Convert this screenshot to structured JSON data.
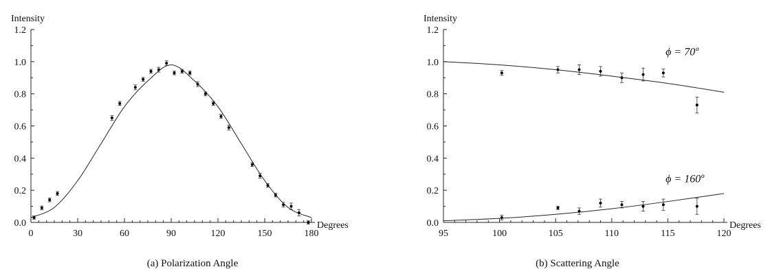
{
  "chart_data": [
    {
      "type": "scatter",
      "caption": "(a) Polarization Angle",
      "ylabel": "Intensity",
      "xlabel": "Degrees",
      "xlim": [
        0,
        180
      ],
      "ylim": [
        0,
        1.2
      ],
      "x_ticks": [
        "0",
        "30",
        "60",
        "90",
        "120",
        "150",
        "180"
      ],
      "y_ticks": [
        "0.0",
        "0.2",
        "0.4",
        "0.6",
        "0.8",
        "1.0",
        "1.2"
      ],
      "grid": false,
      "series": [
        {
          "kind": "points",
          "x": [
            2,
            7,
            12,
            17,
            52,
            57,
            67,
            72,
            77,
            82,
            87,
            92,
            97,
            102,
            107,
            112,
            117,
            122,
            127,
            142,
            147,
            152,
            157,
            162,
            167,
            172,
            178
          ],
          "y": [
            0.03,
            0.09,
            0.14,
            0.18,
            0.65,
            0.74,
            0.84,
            0.89,
            0.94,
            0.95,
            0.99,
            0.93,
            0.94,
            0.93,
            0.86,
            0.8,
            0.74,
            0.66,
            0.59,
            0.36,
            0.29,
            0.23,
            0.17,
            0.11,
            0.1,
            0.06,
            0.0
          ],
          "yerr": [
            0.01,
            0.012,
            0.012,
            0.012,
            0.015,
            0.012,
            0.015,
            0.012,
            0.012,
            0.015,
            0.015,
            0.012,
            0.012,
            0.012,
            0.015,
            0.012,
            0.012,
            0.012,
            0.015,
            0.012,
            0.015,
            0.012,
            0.012,
            0.015,
            0.02,
            0.02,
            0.01
          ]
        },
        {
          "kind": "curve",
          "x": [
            0,
            15,
            30,
            45,
            60,
            75,
            90,
            105,
            120,
            135,
            150,
            165,
            180
          ],
          "y": [
            0.03,
            0.093,
            0.26,
            0.49,
            0.72,
            0.88,
            0.98,
            0.88,
            0.72,
            0.49,
            0.26,
            0.093,
            0.03
          ]
        }
      ]
    },
    {
      "type": "scatter",
      "caption": "(b) Scattering Angle",
      "ylabel": "Intensity",
      "xlabel": "Degrees",
      "xlim": [
        95,
        120
      ],
      "ylim": [
        0,
        1.2
      ],
      "x_ticks": [
        "95",
        "100",
        "105",
        "110",
        "115",
        "120"
      ],
      "y_ticks": [
        "0.0",
        "0.2",
        "0.4",
        "0.6",
        "0.8",
        "1.0",
        "1.2"
      ],
      "grid": false,
      "annotations": [
        {
          "text": "ϕ = 70º",
          "x": 114.8,
          "y": 1.04
        },
        {
          "text": "ϕ = 160º",
          "x": 114.8,
          "y": 0.25
        }
      ],
      "series": [
        {
          "kind": "points",
          "x": [
            100.2,
            105.2,
            107.1,
            109,
            110.9,
            112.8,
            114.6,
            117.6
          ],
          "y": [
            0.93,
            0.95,
            0.95,
            0.94,
            0.9,
            0.92,
            0.93,
            0.73
          ],
          "yerr": [
            0.015,
            0.02,
            0.03,
            0.03,
            0.03,
            0.04,
            0.025,
            0.05
          ]
        },
        {
          "kind": "curve",
          "x": [
            95,
            100,
            105,
            110,
            115,
            120
          ],
          "y": [
            1.0,
            0.98,
            0.95,
            0.91,
            0.865,
            0.81
          ]
        },
        {
          "kind": "points",
          "x": [
            100.2,
            105.2,
            107.1,
            109,
            110.9,
            112.8,
            114.6,
            117.6
          ],
          "y": [
            0.03,
            0.09,
            0.07,
            0.12,
            0.11,
            0.1,
            0.11,
            0.1
          ],
          "yerr": [
            0.015,
            0.01,
            0.02,
            0.025,
            0.02,
            0.03,
            0.035,
            0.05
          ]
        },
        {
          "kind": "curve",
          "x": [
            95,
            100,
            105,
            110,
            115,
            120
          ],
          "y": [
            0.01,
            0.025,
            0.05,
            0.085,
            0.13,
            0.18
          ]
        }
      ]
    }
  ]
}
